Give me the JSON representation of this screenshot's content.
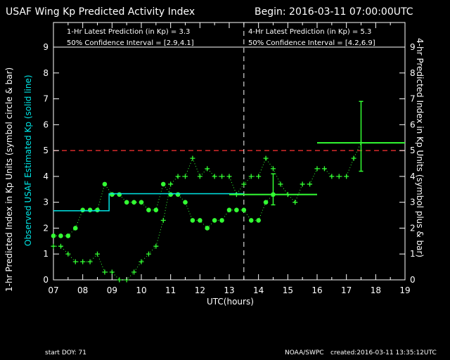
{
  "header": {
    "title": "USAF Wing Kp Predicted Activity Index",
    "begin": "Begin: 2016-03-11 07:00:00UTC"
  },
  "info": {
    "left_line1": "1-Hr Latest Prediction (in Kp) = 3.3",
    "left_line2": "50% Confidence Interval  = [2.9,4.1]",
    "right_line1": "4-Hr Latest Prediction (in Kp) = 5.3",
    "right_line2": "50% Confidence Interval  = [4.2,6.9]"
  },
  "axes": {
    "left_label_white": "1-hr Predicted Index in Kp Units (symbol circle & bar)",
    "left_label_cyan": "Observed USAF Estimated Kp (solid line)",
    "right_label": "4-hr Predicted Index in Kp Units (symbol plus & bar)",
    "x_label": "UTC(hours)"
  },
  "footer": {
    "start_doy": "start DOY:   71",
    "source": "NOAA/SWPC",
    "created": "created:2016-03-11 13:35:12UTC"
  },
  "chart_data": {
    "type": "line",
    "xlim": [
      7,
      19
    ],
    "ylim": [
      0,
      9
    ],
    "x_ticks": [
      7,
      8,
      9,
      10,
      11,
      12,
      13,
      14,
      15,
      16,
      17,
      18,
      19
    ],
    "x_tick_labels": [
      "07",
      "08",
      "09",
      "10",
      "11",
      "12",
      "13",
      "14",
      "15",
      "16",
      "17",
      "18",
      "19"
    ],
    "y_ticks": [
      0,
      1,
      2,
      3,
      4,
      5,
      6,
      7,
      8,
      9
    ],
    "y_tick_labels": [
      "0",
      "1",
      "2",
      "3",
      "4",
      "5",
      "6",
      "7",
      "8",
      "9"
    ],
    "threshold": 5,
    "threshold_color": "#ff3333",
    "now_line_x": 13.5,
    "colors": {
      "predicted": "#33ff33",
      "observed": "#00e6e6"
    },
    "series": [
      {
        "kind": "predicted_1hr",
        "x": [
          7.0,
          7.25,
          7.5,
          7.75,
          8.0,
          8.25,
          8.5,
          8.75,
          9.0,
          9.25,
          9.5,
          9.75,
          10.0,
          10.25,
          10.5,
          10.75,
          11.0,
          11.25,
          11.5,
          11.75,
          12.0,
          12.25,
          12.5,
          12.75,
          13.0,
          13.25,
          13.5,
          13.75,
          14.0,
          14.25,
          14.5
        ],
        "y": [
          1.7,
          1.7,
          1.7,
          2.0,
          2.7,
          2.7,
          2.7,
          3.7,
          3.3,
          3.3,
          3.0,
          3.0,
          3.0,
          2.7,
          2.7,
          3.7,
          3.3,
          3.3,
          3.0,
          2.3,
          2.3,
          2.0,
          2.3,
          2.3,
          2.7,
          2.7,
          2.7,
          2.3,
          2.3,
          3.0,
          3.3
        ]
      },
      {
        "kind": "predicted_4hr",
        "x": [
          7.0,
          7.25,
          7.5,
          7.75,
          8.0,
          8.25,
          8.5,
          8.75,
          9.0,
          9.25,
          9.5,
          9.75,
          10.0,
          10.25,
          10.5,
          10.75,
          11.0,
          11.25,
          11.5,
          11.75,
          12.0,
          12.25,
          12.5,
          12.75,
          13.0,
          13.25,
          13.5,
          13.75,
          14.0,
          14.25,
          14.5,
          14.75,
          15.0,
          15.25,
          15.5,
          15.75,
          16.0,
          16.25,
          16.5,
          16.75,
          17.0,
          17.25,
          17.5
        ],
        "y": [
          1.3,
          1.3,
          1.0,
          0.7,
          0.7,
          0.7,
          1.0,
          0.3,
          0.3,
          0.0,
          0.0,
          0.3,
          0.7,
          1.0,
          1.3,
          2.3,
          3.7,
          4.0,
          4.0,
          4.7,
          4.0,
          4.3,
          4.0,
          4.0,
          4.0,
          3.3,
          3.7,
          4.0,
          4.0,
          4.7,
          4.3,
          3.7,
          3.3,
          3.0,
          3.7,
          3.7,
          4.3,
          4.3,
          4.0,
          4.0,
          4.0,
          4.7,
          5.3
        ]
      },
      {
        "kind": "observed",
        "steps": [
          {
            "x0": 7.0,
            "x1": 8.9,
            "y": 2.67
          },
          {
            "x0": 8.9,
            "x1": 13.5,
            "y": 3.33
          }
        ]
      },
      {
        "kind": "prediction_bars",
        "bars": [
          {
            "x": 14.5,
            "xrange": [
              13.0,
              16.0
            ],
            "y": 3.3,
            "err": [
              2.9,
              4.1
            ]
          },
          {
            "x": 17.5,
            "xrange": [
              16.0,
              19.0
            ],
            "y": 5.3,
            "err": [
              4.2,
              6.9
            ]
          }
        ]
      }
    ]
  }
}
